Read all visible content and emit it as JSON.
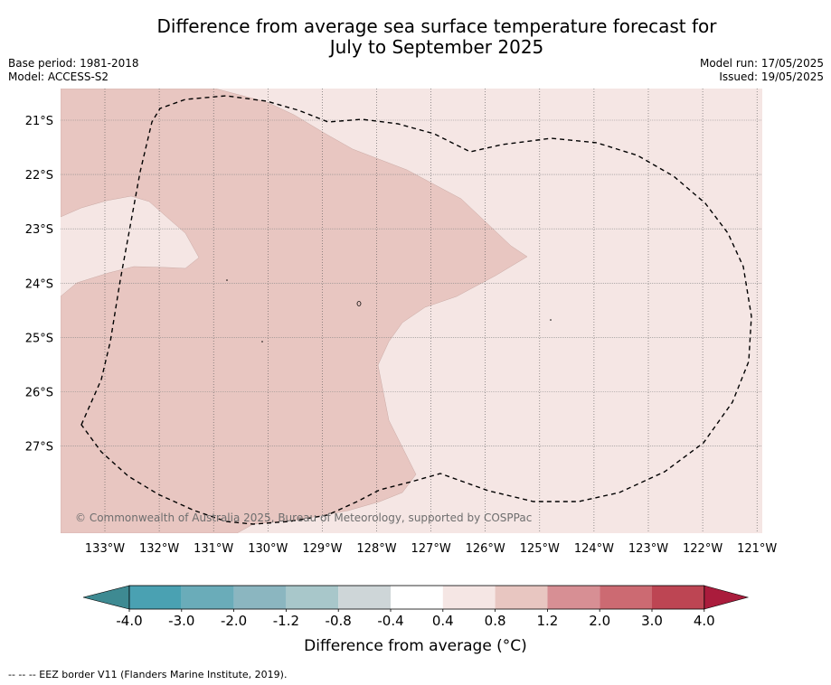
{
  "title_line1": "Difference from average sea surface temperature forecast for",
  "title_line2": "July to September 2025",
  "meta_left": [
    "Base period: 1981-2018",
    "Model: ACCESS-S2"
  ],
  "meta_right": [
    "Model run: 17/05/2025",
    "Issued: 19/05/2025"
  ],
  "copyright": "© Commonwealth of Australia 2025, Bureau of Meteorology, supported by COSPPac",
  "lat_labels": [
    "21°S",
    "22°S",
    "23°S",
    "24°S",
    "25°S",
    "26°S",
    "27°S"
  ],
  "lon_labels": [
    "133°W",
    "132°W",
    "131°W",
    "130°W",
    "129°W",
    "128°W",
    "127°W",
    "126°W",
    "125°W",
    "124°W",
    "123°W",
    "122°W",
    "121°W"
  ],
  "colorbar": {
    "ticks": [
      "-4.0",
      "-3.0",
      "-2.0",
      "-1.2",
      "-0.8",
      "-0.4",
      "0.4",
      "0.8",
      "1.2",
      "2.0",
      "3.0",
      "4.0"
    ],
    "colors": [
      "#3e8a92",
      "#4aa1b2",
      "#6aacb9",
      "#8bb6c0",
      "#a8c7ca",
      "#ced6d8",
      "#ffffff",
      "#f5e6e4",
      "#e8c6c1",
      "#d78f94",
      "#cc6a72",
      "#bd4553",
      "#aa1c3c"
    ],
    "label": "Difference from average (°C)"
  },
  "map_fill": {
    "warm_0_4_to_0_8": "#f5e6e4",
    "warm_0_8_to_1_2": "#e8c6c1"
  },
  "footnote": "--  --  -- EEZ border V11 (Flanders Marine Institute, 2019)."
}
